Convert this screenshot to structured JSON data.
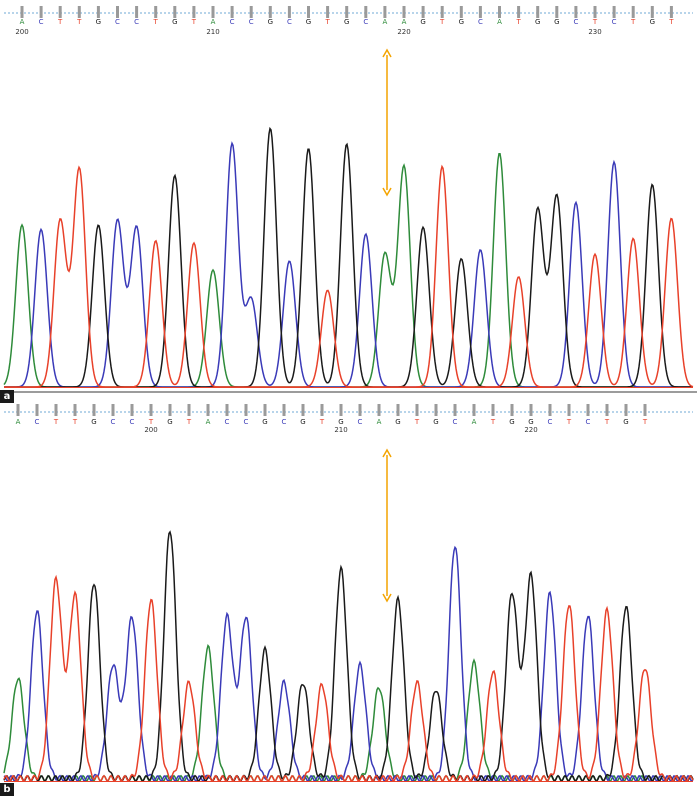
{
  "colors": {
    "A": "#2e8b3a",
    "C": "#3a3ab8",
    "G": "#1a1a1a",
    "T": "#e8412a",
    "arrow": "#f4a400",
    "baseline": "#6fa8d6",
    "tick": "#9a9a9a"
  },
  "chart_data": [
    {
      "type": "line",
      "panel": "a",
      "bases": [
        "A",
        "C",
        "T",
        "T",
        "G",
        "C",
        "C",
        "T",
        "G",
        "T",
        "A",
        "C",
        "C",
        "G",
        "C",
        "G",
        "T",
        "G",
        "C",
        "A",
        "A",
        "G",
        "T",
        "G",
        "C",
        "A",
        "T",
        "G",
        "G",
        "C",
        "T",
        "C",
        "T",
        "G",
        "T"
      ],
      "position_labels": [
        "200",
        "210",
        "220",
        "230"
      ],
      "position_label_base_index": [
        0,
        10,
        20,
        30
      ],
      "peak_heights": [
        0.72,
        0.7,
        0.74,
        0.97,
        0.72,
        0.74,
        0.71,
        0.65,
        0.94,
        0.64,
        0.52,
        1.08,
        0.39,
        1.15,
        0.56,
        1.06,
        0.43,
        1.08,
        0.68,
        0.59,
        0.98,
        0.71,
        0.98,
        0.57,
        0.61,
        1.04,
        0.49,
        0.79,
        0.85,
        0.82,
        0.59,
        1.0,
        0.66,
        0.9,
        0.75
      ],
      "marked_base_index": 19
    },
    {
      "type": "line",
      "panel": "b",
      "bases": [
        "A",
        "C",
        "T",
        "T",
        "G",
        "C",
        "C",
        "T",
        "G",
        "T",
        "A",
        "C",
        "C",
        "G",
        "C",
        "G",
        "T",
        "G",
        "C",
        "A",
        "G",
        "T",
        "G",
        "C",
        "A",
        "T",
        "G",
        "G",
        "C",
        "T",
        "C",
        "T",
        "G",
        "T"
      ],
      "position_labels": [
        "200",
        "210",
        "220"
      ],
      "position_label_base_index": [
        7,
        17,
        27
      ],
      "peak_heights": [
        0.46,
        0.77,
        0.91,
        0.84,
        0.9,
        0.52,
        0.74,
        0.82,
        1.14,
        0.44,
        0.6,
        0.74,
        0.74,
        0.59,
        0.44,
        0.44,
        0.43,
        0.96,
        0.52,
        0.42,
        0.82,
        0.44,
        0.41,
        1.07,
        0.53,
        0.49,
        0.85,
        0.93,
        0.85,
        0.8,
        0.75,
        0.77,
        0.79,
        0.51
      ]
    }
  ],
  "labels": {
    "panel_a": "a",
    "panel_b": "b"
  }
}
